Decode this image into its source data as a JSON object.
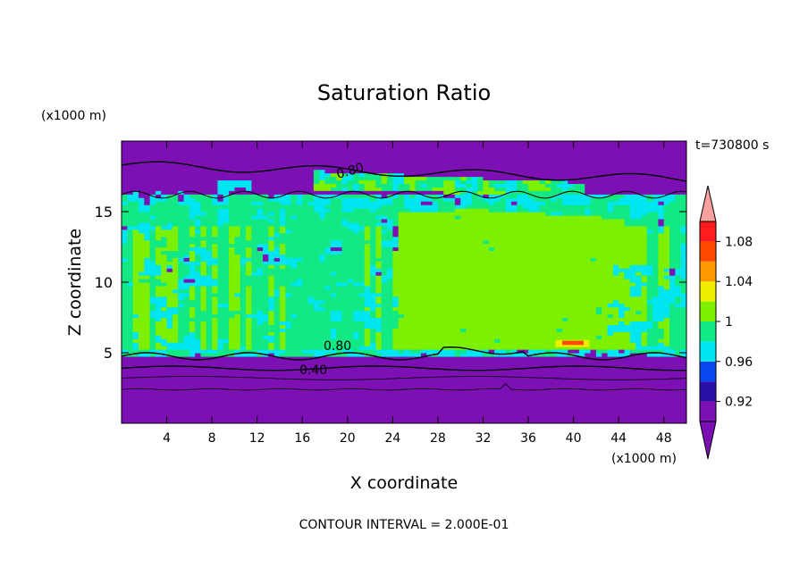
{
  "chart_data": {
    "type": "heatmap",
    "title": "Saturation Ratio",
    "xlabel": "X coordinate",
    "ylabel": "Z coordinate",
    "x_unit": "(x1000 m)",
    "y_unit": "(x1000 m)",
    "time_label": "t=730800 s",
    "footer": "CONTOUR INTERVAL = 2.000E-01",
    "xlim": [
      0,
      50
    ],
    "ylim": [
      0,
      20
    ],
    "x_ticks": [
      "4",
      "8",
      "12",
      "16",
      "20",
      "24",
      "28",
      "32",
      "36",
      "40",
      "44",
      "48"
    ],
    "y_ticks": [
      "5",
      "10",
      "15"
    ],
    "contour_labels": [
      "0.80",
      "0.80",
      "0.40"
    ],
    "colorbar": {
      "levels": [
        0.9,
        0.92,
        0.94,
        0.96,
        0.98,
        1.0,
        1.02,
        1.04,
        1.06,
        1.08,
        1.1
      ],
      "tick_labels": [
        "0.92",
        "0.96",
        "1",
        "1.04",
        "1.08"
      ],
      "colors": [
        "#7d10b4",
        "#2a10a8",
        "#0a46ee",
        "#00e6f0",
        "#12e884",
        "#7cf000",
        "#f0ee00",
        "#ff9a00",
        "#ff4a00",
        "#ff1c1c",
        "#f6a0a0"
      ],
      "below_color": "#7d10b4",
      "above_color": "#f6a0a0"
    },
    "colors": {
      "dry": "#7d10b4",
      "cyan": "#00e6f0",
      "green_teal": "#12e884",
      "green_lime": "#7cf000",
      "contour": "#000000"
    }
  }
}
